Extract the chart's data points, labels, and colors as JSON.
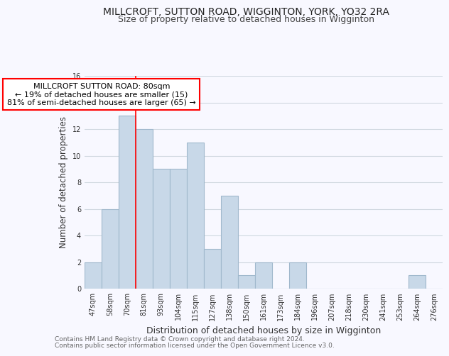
{
  "title": "MILLCROFT, SUTTON ROAD, WIGGINTON, YORK, YO32 2RA",
  "subtitle": "Size of property relative to detached houses in Wigginton",
  "xlabel": "Distribution of detached houses by size in Wigginton",
  "ylabel": "Number of detached properties",
  "footnote1": "Contains HM Land Registry data © Crown copyright and database right 2024.",
  "footnote2": "Contains public sector information licensed under the Open Government Licence v3.0.",
  "bar_labels": [
    "47sqm",
    "58sqm",
    "70sqm",
    "81sqm",
    "93sqm",
    "104sqm",
    "115sqm",
    "127sqm",
    "138sqm",
    "150sqm",
    "161sqm",
    "173sqm",
    "184sqm",
    "196sqm",
    "207sqm",
    "218sqm",
    "230sqm",
    "241sqm",
    "253sqm",
    "264sqm",
    "276sqm"
  ],
  "bar_values": [
    2,
    6,
    13,
    12,
    9,
    9,
    11,
    3,
    7,
    1,
    2,
    0,
    2,
    0,
    0,
    0,
    0,
    0,
    0,
    1,
    0
  ],
  "bar_color": "#c8d8e8",
  "bar_edge_color": "#a0b8cc",
  "annotation_label": "MILLCROFT SUTTON ROAD: 80sqm",
  "annotation_line1": "← 19% of detached houses are smaller (15)",
  "annotation_line2": "81% of semi-detached houses are larger (65) →",
  "annotation_box_color": "white",
  "annotation_box_edge": "red",
  "ylim": [
    0,
    16
  ],
  "yticks": [
    0,
    2,
    4,
    6,
    8,
    10,
    12,
    14,
    16
  ],
  "grid_color": "#d0d8e0",
  "background_color": "#f8f8ff",
  "title_fontsize": 10,
  "subtitle_fontsize": 9,
  "xlabel_fontsize": 9,
  "ylabel_fontsize": 8.5,
  "tick_fontsize": 7,
  "annotation_fontsize": 8,
  "footnote_fontsize": 6.5
}
